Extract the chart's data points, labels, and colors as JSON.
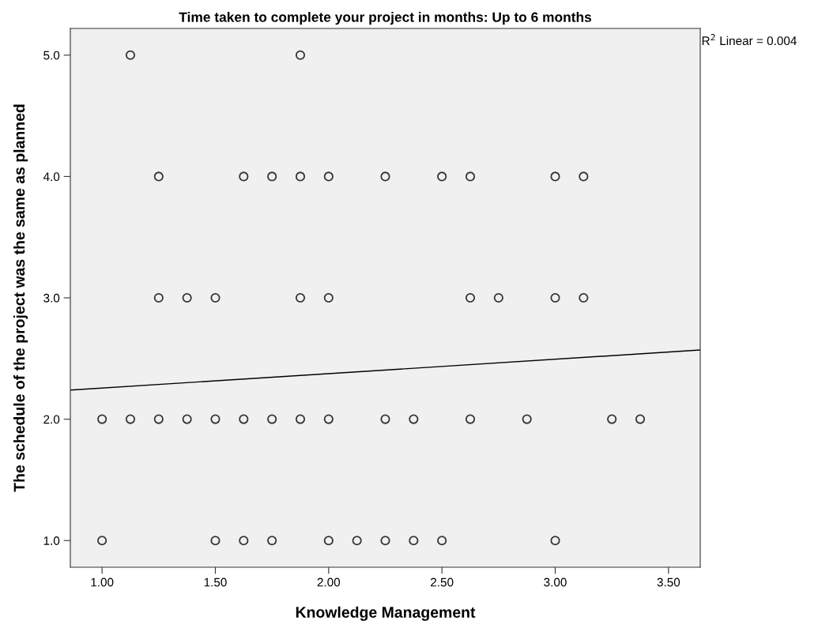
{
  "chart_data": {
    "type": "scatter",
    "title": "Time taken to complete your project in months: Up to 6 months",
    "xlabel": "Knowledge Management",
    "ylabel": "The schedule of the project was the same as planned",
    "annotations": [
      "R$^{2}$ Linear = 0.004"
    ],
    "grid": false,
    "legend": false,
    "xlim": [
      0.86,
      3.64
    ],
    "ylim": [
      0.78,
      5.22
    ],
    "xticks": [
      {
        "value": 1,
        "label": "1.00"
      },
      {
        "value": 1.5,
        "label": "1.50"
      },
      {
        "value": 2,
        "label": "2.00"
      },
      {
        "value": 2.5,
        "label": "2.50"
      },
      {
        "value": 3,
        "label": "3.00"
      },
      {
        "value": 3.5,
        "label": "3.50"
      }
    ],
    "yticks": [
      {
        "value": 1,
        "label": "1.0"
      },
      {
        "value": 2,
        "label": "2.0"
      },
      {
        "value": 3,
        "label": "3.0"
      },
      {
        "value": 4,
        "label": "4.0"
      },
      {
        "value": 5,
        "label": "5.0"
      }
    ],
    "series": [
      {
        "marker": "circle",
        "color": "#333333",
        "x": [
          1.125,
          1.875,
          1.25,
          1.625,
          1.75,
          1.875,
          2.0,
          2.25,
          2.5,
          2.625,
          3.0,
          3.125,
          1.25,
          1.375,
          1.5,
          1.875,
          2.0,
          2.625,
          2.75,
          3.0,
          3.125,
          1.0,
          1.125,
          1.25,
          1.375,
          1.5,
          1.625,
          1.75,
          1.875,
          2.0,
          2.25,
          2.375,
          2.625,
          2.875,
          3.25,
          3.375,
          1.0,
          1.5,
          1.625,
          1.75,
          2.0,
          2.125,
          2.25,
          2.375,
          2.5,
          3.0
        ],
        "values": [
          5,
          5,
          4,
          4,
          4,
          4,
          4,
          4,
          4,
          4,
          4,
          4,
          3,
          3,
          3,
          3,
          3,
          3,
          3,
          3,
          3,
          2,
          2,
          2,
          2,
          2,
          2,
          2,
          2,
          2,
          2,
          2,
          2,
          2,
          2,
          2,
          1,
          1,
          1,
          1,
          1,
          1,
          1,
          1,
          1,
          1
        ]
      },
      {
        "type": "line",
        "color": "#000000",
        "x": [
          0.86,
          3.64
        ],
        "values": [
          2.24,
          2.57
        ]
      }
    ]
  }
}
